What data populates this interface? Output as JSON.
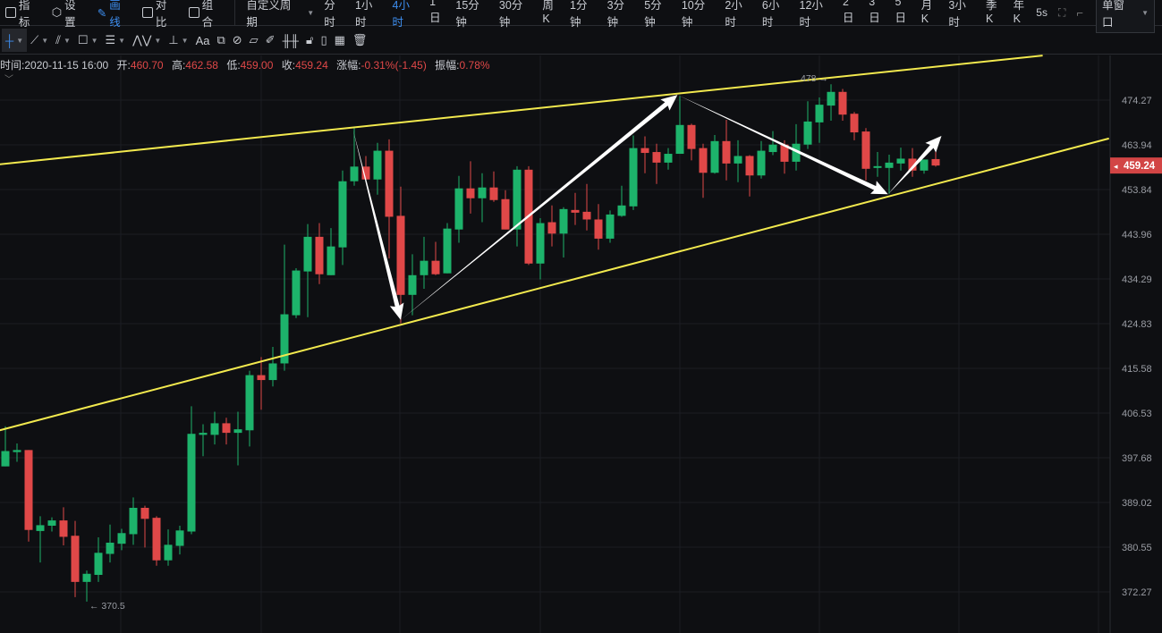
{
  "topbar": {
    "indicators": "指标",
    "settings": "设置",
    "draw": "画线",
    "compare": "对比",
    "combine": "组合",
    "custom_period": "自定义周期",
    "periods": [
      "分时",
      "1小时",
      "4小时",
      "1日",
      "15分钟",
      "30分钟",
      "周K",
      "1分钟",
      "3分钟",
      "5分钟",
      "10分钟",
      "2小时",
      "6小时",
      "12小时",
      "2日",
      "3日",
      "5日",
      "月K",
      "3小时",
      "季K",
      "年K"
    ],
    "active_period": "4小时",
    "refresh": "5s",
    "window_mode": "单窗口"
  },
  "drawbar": {
    "text_tool": "Aa"
  },
  "info": {
    "time_label": "时间:",
    "time": "2020-11-15 16:00",
    "open_label": "开:",
    "open": "460.70",
    "high_label": "高:",
    "high": "462.58",
    "low_label": "低:",
    "low": "459.00",
    "close_label": "收:",
    "close": "459.24",
    "change_label": "涨幅:",
    "change": "-0.31%(-1.45)",
    "amplitude_label": "振幅:",
    "amplitude": "0.78%"
  },
  "colors": {
    "up": "#1db36b",
    "down": "#e04848",
    "trendline": "#f2e94e",
    "arrow": "#ffffff",
    "accent": "#3d8ef0",
    "background": "#0e0f12"
  },
  "chart_data": {
    "type": "candlestick",
    "scale": "log",
    "ylim": [
      372.27,
      474.27
    ],
    "y_ticks": [
      "474.27",
      "463.94",
      "453.84",
      "443.96",
      "434.29",
      "424.83",
      "415.58",
      "406.53",
      "397.68",
      "389.02",
      "380.55",
      "372.27"
    ],
    "current_price": "459.24",
    "high_marker": "478 →",
    "low_marker": "← 370.5",
    "candles_ohlc": [
      [
        396.0,
        403.9,
        396.0,
        399.0
      ],
      [
        398.8,
        400.5,
        396.9,
        399.2
      ],
      [
        399.2,
        399.2,
        381.6,
        383.8
      ],
      [
        383.6,
        386.4,
        377.7,
        384.7
      ],
      [
        384.6,
        386.2,
        383.5,
        385.6
      ],
      [
        385.6,
        388.1,
        380.9,
        382.5
      ],
      [
        382.7,
        385.5,
        371.3,
        374.1
      ],
      [
        374.1,
        376.2,
        370.5,
        375.6
      ],
      [
        375.4,
        382.4,
        374.1,
        379.5
      ],
      [
        379.3,
        384.8,
        377.7,
        381.4
      ],
      [
        381.2,
        384.0,
        380.0,
        383.2
      ],
      [
        383.0,
        390.0,
        381.0,
        388.0
      ],
      [
        388.0,
        388.4,
        380.5,
        385.9
      ],
      [
        386.1,
        386.4,
        377.1,
        378.1
      ],
      [
        378.1,
        383.9,
        377.1,
        381.0
      ],
      [
        380.8,
        384.6,
        379.2,
        383.7
      ],
      [
        383.5,
        407.9,
        383.0,
        402.4
      ],
      [
        402.2,
        404.3,
        398.0,
        402.6
      ],
      [
        402.2,
        406.8,
        400.3,
        404.5
      ],
      [
        404.5,
        405.6,
        400.3,
        402.6
      ],
      [
        402.6,
        406.8,
        396.2,
        403.3
      ],
      [
        403.1,
        415.1,
        399.9,
        414.2
      ],
      [
        414.2,
        417.9,
        407.2,
        413.2
      ],
      [
        413.2,
        420.0,
        411.9,
        416.6
      ],
      [
        416.6,
        441.7,
        415.1,
        426.8
      ],
      [
        426.6,
        436.6,
        426.0,
        436.1
      ],
      [
        435.9,
        446.2,
        426.2,
        443.4
      ],
      [
        443.4,
        446.4,
        433.2,
        435.3
      ],
      [
        435.1,
        445.3,
        435.1,
        441.3
      ],
      [
        441.1,
        458.1,
        437.3,
        455.7
      ],
      [
        455.7,
        467.9,
        454.7,
        459.0
      ],
      [
        459.0,
        461.4,
        456.1,
        456.1
      ],
      [
        456.1,
        464.4,
        452.7,
        462.6
      ],
      [
        462.6,
        465.2,
        438.7,
        447.8
      ],
      [
        448.0,
        454.5,
        424.9,
        430.9
      ],
      [
        430.9,
        439.6,
        426.6,
        435.1
      ],
      [
        435.1,
        443.4,
        432.2,
        438.2
      ],
      [
        438.2,
        442.3,
        435.1,
        435.3
      ],
      [
        435.5,
        446.4,
        435.5,
        445.2
      ],
      [
        445.0,
        456.9,
        442.1,
        454.1
      ],
      [
        454.1,
        460.2,
        448.5,
        451.9
      ],
      [
        451.9,
        457.5,
        446.6,
        454.3
      ],
      [
        454.3,
        457.9,
        451.1,
        451.5
      ],
      [
        451.7,
        453.7,
        445.0,
        445.0
      ],
      [
        445.0,
        459.1,
        441.3,
        458.3
      ],
      [
        458.3,
        459.1,
        437.3,
        437.6
      ],
      [
        437.6,
        447.5,
        434.2,
        446.4
      ],
      [
        446.6,
        450.3,
        441.3,
        444.1
      ],
      [
        444.1,
        449.9,
        438.9,
        449.5
      ],
      [
        449.3,
        453.1,
        446.0,
        448.7
      ],
      [
        448.9,
        455.1,
        444.8,
        447.2
      ],
      [
        447.2,
        450.6,
        440.6,
        443.0
      ],
      [
        443.0,
        449.2,
        442.1,
        448.3
      ],
      [
        448.0,
        454.7,
        447.8,
        450.3
      ],
      [
        450.1,
        466.1,
        449.3,
        463.2
      ],
      [
        463.2,
        465.9,
        457.5,
        462.1
      ],
      [
        462.3,
        464.2,
        455.1,
        459.9
      ],
      [
        459.9,
        463.2,
        458.3,
        461.9
      ],
      [
        461.9,
        475.2,
        461.9,
        468.5
      ],
      [
        468.5,
        468.8,
        460.4,
        463.0
      ],
      [
        463.2,
        464.2,
        452.0,
        457.6
      ],
      [
        457.6,
        466.2,
        457.4,
        464.8
      ],
      [
        464.8,
        469.7,
        455.9,
        459.7
      ],
      [
        459.7,
        465.0,
        455.5,
        461.4
      ],
      [
        461.4,
        461.6,
        452.3,
        457.0
      ],
      [
        457.0,
        464.8,
        456.3,
        462.6
      ],
      [
        462.3,
        467.1,
        461.6,
        464.0
      ],
      [
        464.0,
        465.0,
        457.4,
        460.1
      ],
      [
        460.1,
        468.7,
        458.1,
        464.2
      ],
      [
        464.0,
        474.0,
        463.0,
        469.3
      ],
      [
        469.1,
        474.9,
        464.4,
        473.2
      ],
      [
        473.0,
        478.0,
        469.5,
        476.2
      ],
      [
        476.2,
        476.9,
        469.5,
        470.9
      ],
      [
        471.1,
        471.5,
        465.0,
        466.8
      ],
      [
        467.0,
        467.8,
        455.9,
        458.5
      ],
      [
        458.7,
        462.3,
        456.7,
        459.1
      ],
      [
        458.7,
        461.7,
        452.9,
        459.9
      ],
      [
        459.7,
        463.3,
        458.1,
        460.8
      ],
      [
        460.8,
        463.2,
        456.7,
        458.1
      ],
      [
        458.1,
        460.6,
        457.4,
        460.6
      ],
      [
        460.7,
        462.58,
        459.0,
        459.24
      ]
    ],
    "trendlines": [
      {
        "from": [
          -0.5,
          459.5
        ],
        "to": [
          89.2,
          484.8
        ]
      },
      {
        "from": [
          -0.5,
          403.1
        ],
        "to": [
          94.9,
          465.4
        ]
      }
    ],
    "arrows": [
      {
        "from": [
          29.9,
          467.4
        ],
        "to": [
          34.0,
          425.6
        ]
      },
      {
        "from": [
          34.0,
          425.6
        ],
        "to": [
          57.8,
          475.5
        ]
      },
      {
        "from": [
          57.8,
          475.5
        ],
        "to": [
          75.9,
          452.8
        ]
      },
      {
        "from": [
          75.9,
          452.8
        ],
        "to": [
          80.5,
          466.0
        ]
      }
    ]
  }
}
